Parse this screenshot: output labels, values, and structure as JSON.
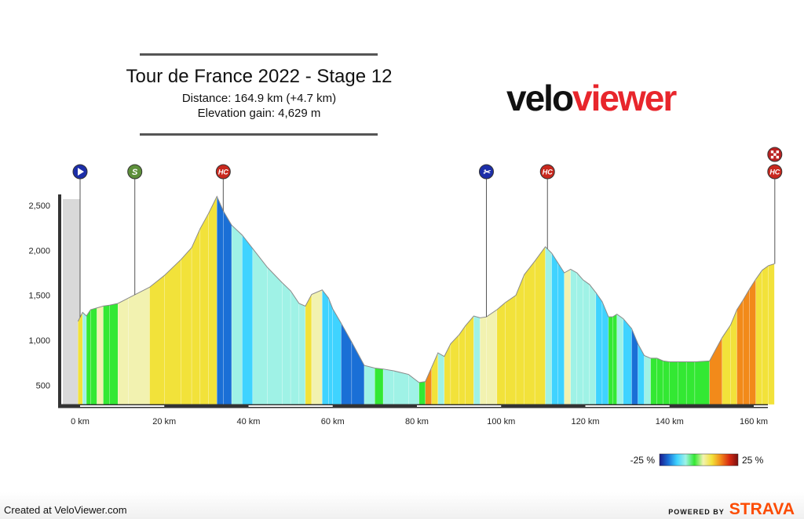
{
  "header": {
    "title": "Tour de France 2022 - Stage 12",
    "distance": "Distance: 164.9 km (+4.7 km)",
    "elevation_gain": "Elevation gain: 4,629 m"
  },
  "logo": {
    "part1": "velo",
    "part2": "viewer"
  },
  "footer": {
    "created": "Created at VeloViewer.com",
    "powered_by": "POWERED BY",
    "strava": "STRAVA"
  },
  "colors": {
    "grade_scale": [
      "#1a1a8a",
      "#1a6fd6",
      "#3fd3ff",
      "#9ff2e6",
      "#33e833",
      "#f2f2b0",
      "#f2e23a",
      "#f28a1a",
      "#d82a12",
      "#7a1010"
    ],
    "marker_blue": "#1c2ea8",
    "marker_green": "#5d8f3a",
    "marker_red": "#c8281e",
    "axis": "#333333",
    "pre_start": "#d9d9d9"
  },
  "chart_data": {
    "type": "area",
    "title": "Tour de France 2022 - Stage 12",
    "xlabel": "",
    "ylabel": "",
    "x_unit": "km",
    "xlim": [
      -3,
      166
    ],
    "ylim": [
      300,
      2650
    ],
    "x_ticks": [
      0,
      20,
      40,
      60,
      80,
      100,
      120,
      140,
      160
    ],
    "x_tick_labels": [
      "0 km",
      "20 km",
      "40 km",
      "60 km",
      "80 km",
      "100 km",
      "120 km",
      "140 km",
      "160 km"
    ],
    "y_ticks": [
      500,
      1000,
      1500,
      2000,
      2500
    ],
    "y_tick_labels": [
      "500",
      "1,000",
      "1,500",
      "2,000",
      "2,500"
    ],
    "pre_start_km": 0,
    "profile": [
      {
        "km": -0.5,
        "ele": 1210,
        "grade": 2
      },
      {
        "km": 0.6,
        "ele": 1310,
        "grade": 6
      },
      {
        "km": 1.5,
        "ele": 1270,
        "grade": -3
      },
      {
        "km": 2.5,
        "ele": 1340,
        "grade": 1
      },
      {
        "km": 4,
        "ele": 1360,
        "grade": 1
      },
      {
        "km": 5.5,
        "ele": 1380,
        "grade": 2
      },
      {
        "km": 7,
        "ele": 1390,
        "grade": 1
      },
      {
        "km": 9,
        "ele": 1410,
        "grade": 1
      },
      {
        "km": 11.5,
        "ele": 1470,
        "grade": 3
      },
      {
        "km": 16.5,
        "ele": 1590,
        "grade": 3
      },
      {
        "km": 20,
        "ele": 1720,
        "grade": 4
      },
      {
        "km": 24,
        "ele": 1900,
        "grade": 4
      },
      {
        "km": 26.5,
        "ele": 2030,
        "grade": 5
      },
      {
        "km": 28.5,
        "ele": 2240,
        "grade": 6
      },
      {
        "km": 30.5,
        "ele": 2410,
        "grade": 5
      },
      {
        "km": 32.5,
        "ele": 2600,
        "grade": 7
      },
      {
        "km": 34,
        "ele": 2440,
        "grade": -8
      },
      {
        "km": 36,
        "ele": 2280,
        "grade": -8
      },
      {
        "km": 38.5,
        "ele": 2170,
        "grade": -5
      },
      {
        "km": 41,
        "ele": 2020,
        "grade": -6
      },
      {
        "km": 44.5,
        "ele": 1810,
        "grade": -5
      },
      {
        "km": 48,
        "ele": 1640,
        "grade": -4
      },
      {
        "km": 50,
        "ele": 1550,
        "grade": -4
      },
      {
        "km": 52,
        "ele": 1410,
        "grade": -3
      },
      {
        "km": 53.5,
        "ele": 1380,
        "grade": -1
      },
      {
        "km": 55,
        "ele": 1510,
        "grade": 6
      },
      {
        "km": 57.5,
        "ele": 1560,
        "grade": 2
      },
      {
        "km": 59,
        "ele": 1470,
        "grade": -6
      },
      {
        "km": 60,
        "ele": 1350,
        "grade": -6
      },
      {
        "km": 62,
        "ele": 1190,
        "grade": -7
      },
      {
        "km": 64.5,
        "ele": 980,
        "grade": -8
      },
      {
        "km": 67.5,
        "ele": 720,
        "grade": -8
      },
      {
        "km": 70,
        "ele": 690,
        "grade": -1
      },
      {
        "km": 72,
        "ele": 680,
        "grade": 0
      },
      {
        "km": 74.5,
        "ele": 660,
        "grade": -1
      },
      {
        "km": 78,
        "ele": 620,
        "grade": -1
      },
      {
        "km": 80.5,
        "ele": 530,
        "grade": -3
      },
      {
        "km": 82,
        "ele": 540,
        "grade": 1
      },
      {
        "km": 83.5,
        "ele": 700,
        "grade": 8
      },
      {
        "km": 85,
        "ele": 860,
        "grade": 7
      },
      {
        "km": 86.5,
        "ele": 820,
        "grade": -2
      },
      {
        "km": 88,
        "ele": 960,
        "grade": 7
      },
      {
        "km": 90,
        "ele": 1060,
        "grade": 7
      },
      {
        "km": 91.5,
        "ele": 1160,
        "grade": 6
      },
      {
        "km": 93.5,
        "ele": 1270,
        "grade": 6
      },
      {
        "km": 95,
        "ele": 1250,
        "grade": -2
      },
      {
        "km": 96.5,
        "ele": 1260,
        "grade": 2
      },
      {
        "km": 99,
        "ele": 1340,
        "grade": 3
      },
      {
        "km": 101,
        "ele": 1420,
        "grade": 4
      },
      {
        "km": 103.5,
        "ele": 1500,
        "grade": 5
      },
      {
        "km": 105.5,
        "ele": 1730,
        "grade": 6
      },
      {
        "km": 108,
        "ele": 1880,
        "grade": 6
      },
      {
        "km": 110.5,
        "ele": 2040,
        "grade": 7
      },
      {
        "km": 112,
        "ele": 1970,
        "grade": -5
      },
      {
        "km": 113.5,
        "ele": 1860,
        "grade": -7
      },
      {
        "km": 115,
        "ele": 1750,
        "grade": -6
      },
      {
        "km": 116.5,
        "ele": 1790,
        "grade": 2
      },
      {
        "km": 118,
        "ele": 1750,
        "grade": -2
      },
      {
        "km": 119.5,
        "ele": 1670,
        "grade": -5
      },
      {
        "km": 121,
        "ele": 1620,
        "grade": -5
      },
      {
        "km": 122.5,
        "ele": 1530,
        "grade": -5
      },
      {
        "km": 124,
        "ele": 1430,
        "grade": -6
      },
      {
        "km": 125.5,
        "ele": 1260,
        "grade": -7
      },
      {
        "km": 126.5,
        "ele": 1260,
        "grade": 1
      },
      {
        "km": 127.5,
        "ele": 1290,
        "grade": 1
      },
      {
        "km": 129,
        "ele": 1240,
        "grade": -5
      },
      {
        "km": 131,
        "ele": 1130,
        "grade": -6
      },
      {
        "km": 132.5,
        "ele": 960,
        "grade": -8
      },
      {
        "km": 134,
        "ele": 830,
        "grade": -6
      },
      {
        "km": 135.5,
        "ele": 800,
        "grade": -2
      },
      {
        "km": 137,
        "ele": 800,
        "grade": 0
      },
      {
        "km": 138.5,
        "ele": 770,
        "grade": 0
      },
      {
        "km": 140,
        "ele": 760,
        "grade": 0
      },
      {
        "km": 142,
        "ele": 760,
        "grade": 0
      },
      {
        "km": 144,
        "ele": 760,
        "grade": 0
      },
      {
        "km": 146,
        "ele": 760,
        "grade": 0
      },
      {
        "km": 149.5,
        "ele": 770,
        "grade": 0
      },
      {
        "km": 152.5,
        "ele": 1030,
        "grade": 9
      },
      {
        "km": 154.5,
        "ele": 1170,
        "grade": 7
      },
      {
        "km": 156,
        "ele": 1340,
        "grade": 7
      },
      {
        "km": 157.5,
        "ele": 1450,
        "grade": 8
      },
      {
        "km": 159,
        "ele": 1570,
        "grade": 8
      },
      {
        "km": 160.5,
        "ele": 1680,
        "grade": 8
      },
      {
        "km": 162,
        "ele": 1780,
        "grade": 7
      },
      {
        "km": 163.5,
        "ele": 1830,
        "grade": 5
      },
      {
        "km": 164.9,
        "ele": 1850,
        "grade": 4
      }
    ],
    "markers": [
      {
        "km": 0,
        "type": "start",
        "label": "▶",
        "color": "blue"
      },
      {
        "km": 13,
        "type": "sprint",
        "label": "S",
        "color": "green"
      },
      {
        "km": 34,
        "type": "climb",
        "label": "HC",
        "color": "red"
      },
      {
        "km": 96.5,
        "type": "feed",
        "label": "✂",
        "color": "blue"
      },
      {
        "km": 111,
        "type": "climb",
        "label": "HC",
        "color": "red"
      },
      {
        "km": 165,
        "type": "climb",
        "label": "HC",
        "color": "red"
      },
      {
        "km": 165,
        "type": "finish",
        "label": "",
        "color": "checkered"
      }
    ],
    "legend": {
      "min_label": "-25 %",
      "max_label": "25 %",
      "placement": "bottom-right"
    }
  }
}
